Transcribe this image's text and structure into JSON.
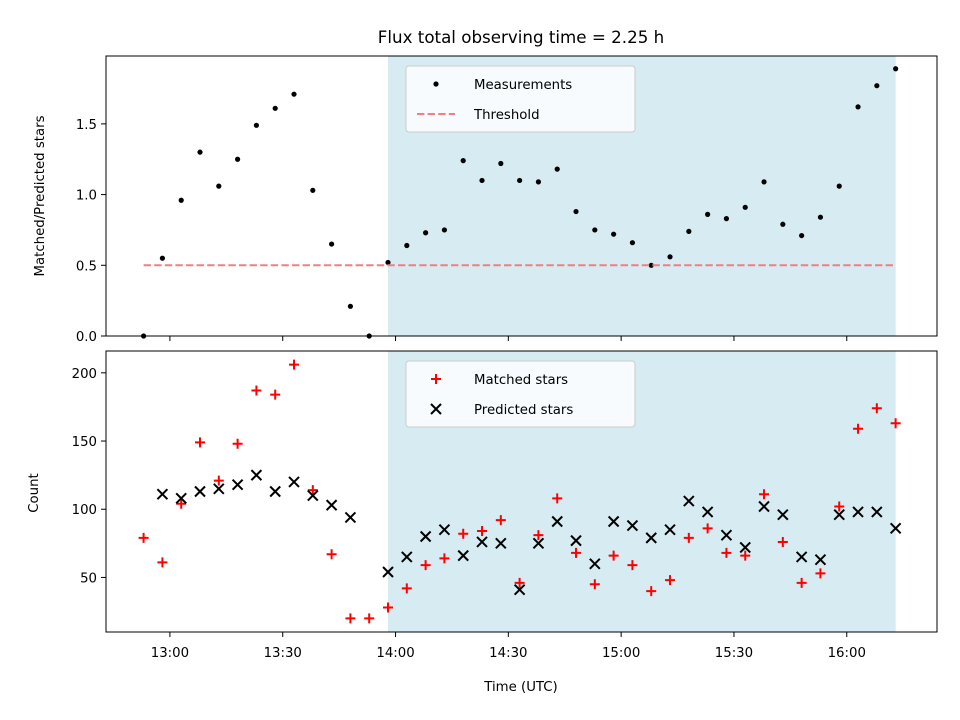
{
  "chart_data": [
    {
      "type": "scatter",
      "title": "Flux total observing time = 2.25 h",
      "xlabel": "",
      "ylabel": "Matched/Predicted stars",
      "ylim": [
        0,
        1.98
      ],
      "yticks": [
        "0.0",
        "0.5",
        "1.0",
        "1.5"
      ],
      "ytick_values": [
        0,
        0.5,
        1.0,
        1.5
      ],
      "legend_position": "top-center",
      "shaded_interval": [
        "13:58",
        "16:13"
      ],
      "shade_color": "#add8e6",
      "series": [
        {
          "name": "Measurements",
          "marker": "dot",
          "color": "#000000",
          "x": [
            "12:53",
            "12:58",
            "13:03",
            "13:08",
            "13:13",
            "13:18",
            "13:23",
            "13:28",
            "13:33",
            "13:38",
            "13:43",
            "13:48",
            "13:53",
            "13:58",
            "14:03",
            "14:08",
            "14:13",
            "14:18",
            "14:23",
            "14:28",
            "14:33",
            "14:38",
            "14:43",
            "14:48",
            "14:53",
            "14:58",
            "15:03",
            "15:08",
            "15:13",
            "15:18",
            "15:23",
            "15:28",
            "15:33",
            "15:38",
            "15:43",
            "15:48",
            "15:53",
            "15:58",
            "16:03",
            "16:08",
            "16:13"
          ],
          "values": [
            0.0,
            0.55,
            0.96,
            1.3,
            1.06,
            1.25,
            1.49,
            1.61,
            1.71,
            1.03,
            0.65,
            0.21,
            0.0,
            0.52,
            0.64,
            0.73,
            0.75,
            1.24,
            1.1,
            1.22,
            1.1,
            1.09,
            1.18,
            0.88,
            0.75,
            0.72,
            0.66,
            0.5,
            0.56,
            0.74,
            0.86,
            0.83,
            0.91,
            1.09,
            0.79,
            0.71,
            0.84,
            1.06,
            1.62,
            1.77,
            1.89
          ]
        },
        {
          "name": "Threshold",
          "marker": "dashed-line",
          "color": "#f08080",
          "x": [
            "12:53",
            "16:13"
          ],
          "values": [
            0.5,
            0.5
          ]
        }
      ]
    },
    {
      "type": "scatter",
      "title": "",
      "xlabel": "Time (UTC)",
      "ylabel": "Count",
      "ylim": [
        10,
        216
      ],
      "yticks": [
        "50",
        "100",
        "150",
        "200"
      ],
      "ytick_values": [
        50,
        100,
        150,
        200
      ],
      "xticks": [
        "13:00",
        "13:30",
        "14:00",
        "14:30",
        "15:00",
        "15:30",
        "16:00"
      ],
      "xlim": [
        "12:43",
        "16:24"
      ],
      "legend_position": "top-center",
      "shaded_interval": [
        "13:58",
        "16:13"
      ],
      "shade_color": "#add8e6",
      "series": [
        {
          "name": "Matched stars",
          "marker": "plus",
          "color": "#ff0000",
          "x": [
            "12:53",
            "12:58",
            "13:03",
            "13:08",
            "13:13",
            "13:18",
            "13:23",
            "13:28",
            "13:33",
            "13:38",
            "13:43",
            "13:48",
            "13:53",
            "13:58",
            "14:03",
            "14:08",
            "14:13",
            "14:18",
            "14:23",
            "14:28",
            "14:33",
            "14:38",
            "14:43",
            "14:48",
            "14:53",
            "14:58",
            "15:03",
            "15:08",
            "15:13",
            "15:18",
            "15:23",
            "15:28",
            "15:33",
            "15:38",
            "15:43",
            "15:48",
            "15:53",
            "15:58",
            "16:03",
            "16:08",
            "16:13"
          ],
          "values": [
            79,
            61,
            104,
            149,
            121,
            148,
            187,
            184,
            206,
            114,
            67,
            20,
            20,
            28,
            42,
            59,
            64,
            82,
            84,
            92,
            46,
            81,
            108,
            68,
            45,
            66,
            59,
            40,
            48,
            79,
            86,
            68,
            66,
            111,
            76,
            46,
            53,
            102,
            159,
            174,
            163
          ]
        },
        {
          "name": "Predicted stars",
          "marker": "x",
          "color": "#000000",
          "x": [
            "12:58",
            "13:03",
            "13:08",
            "13:13",
            "13:18",
            "13:23",
            "13:28",
            "13:33",
            "13:38",
            "13:43",
            "13:48",
            "13:58",
            "14:03",
            "14:08",
            "14:13",
            "14:18",
            "14:23",
            "14:28",
            "14:33",
            "14:38",
            "14:43",
            "14:48",
            "14:53",
            "14:58",
            "15:03",
            "15:08",
            "15:13",
            "15:18",
            "15:23",
            "15:28",
            "15:33",
            "15:38",
            "15:43",
            "15:48",
            "15:53",
            "15:58",
            "16:03",
            "16:08",
            "16:13"
          ],
          "values": [
            111,
            108,
            113,
            115,
            118,
            125,
            113,
            120,
            110,
            103,
            94,
            54,
            65,
            80,
            85,
            66,
            76,
            75,
            41,
            75,
            91,
            77,
            60,
            91,
            88,
            79,
            85,
            106,
            98,
            81,
            72,
            102,
            96,
            65,
            63,
            96,
            98,
            98,
            86
          ]
        }
      ]
    }
  ]
}
